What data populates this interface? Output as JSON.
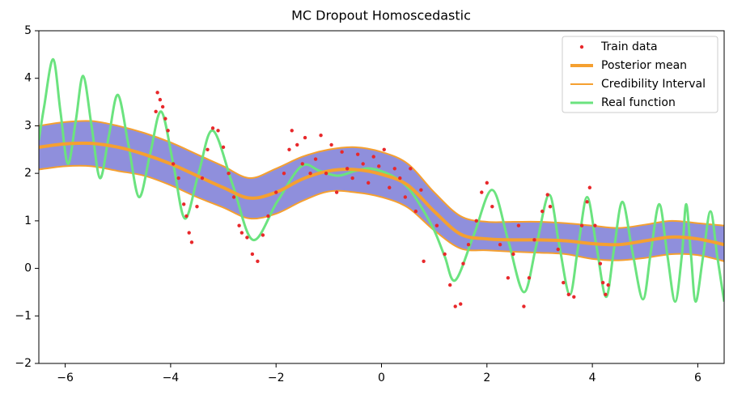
{
  "chart_data": {
    "type": "line",
    "title": "MC Dropout Homoscedastic",
    "xlim": [
      -6.5,
      6.5
    ],
    "ylim": [
      -2,
      5
    ],
    "xticks": [
      {
        "value": -6,
        "label": "−6"
      },
      {
        "value": -4,
        "label": "−4"
      },
      {
        "value": -2,
        "label": "−2"
      },
      0,
      2,
      4,
      6
    ],
    "yticks": [
      {
        "value": -2,
        "label": "−2"
      },
      {
        "value": -1,
        "label": "−1"
      },
      0,
      1,
      2,
      3,
      4,
      5
    ],
    "legend": "upper right",
    "band_color": "#7b7bd6",
    "series": [
      {
        "name": "Train data",
        "kind": "scatter",
        "color": "#e8282b",
        "x": [
          -4.28,
          -4.25,
          -4.2,
          -4.15,
          -4.1,
          -4.05,
          -3.95,
          -3.85,
          -3.75,
          -3.7,
          -3.65,
          -3.6,
          -3.5,
          -3.4,
          -3.3,
          -3.2,
          -3.1,
          -3.0,
          -2.9,
          -2.8,
          -2.7,
          -2.65,
          -2.55,
          -2.45,
          -2.35,
          -2.25,
          -2.15,
          -2.0,
          -1.85,
          -1.75,
          -1.7,
          -1.6,
          -1.5,
          -1.45,
          -1.35,
          -1.25,
          -1.15,
          -1.05,
          -0.95,
          -0.85,
          -0.75,
          -0.65,
          -0.55,
          -0.45,
          -0.35,
          -0.25,
          -0.15,
          -0.05,
          0.05,
          0.15,
          0.25,
          0.35,
          0.45,
          0.55,
          0.65,
          0.75,
          0.8,
          1.05,
          1.2,
          1.3,
          1.4,
          1.5,
          1.55,
          1.65,
          1.8,
          1.9,
          2.0,
          2.1,
          2.25,
          2.4,
          2.5,
          2.6,
          2.7,
          2.8,
          2.9,
          3.05,
          3.15,
          3.2,
          3.35,
          3.45,
          3.55,
          3.65,
          3.8,
          3.9,
          3.95,
          4.05,
          4.15,
          4.2,
          4.25,
          4.3
        ],
        "values": [
          3.3,
          3.7,
          3.55,
          3.4,
          3.15,
          2.9,
          2.2,
          1.9,
          1.35,
          1.1,
          0.75,
          0.55,
          1.3,
          1.9,
          2.5,
          2.95,
          2.9,
          2.55,
          2.0,
          1.5,
          0.9,
          0.75,
          0.65,
          0.3,
          0.15,
          0.7,
          1.1,
          1.6,
          2.0,
          2.5,
          2.9,
          2.6,
          2.2,
          2.75,
          2.0,
          2.3,
          2.8,
          2.0,
          2.6,
          1.6,
          2.45,
          2.1,
          1.9,
          2.4,
          2.2,
          1.8,
          2.35,
          2.15,
          2.5,
          1.7,
          2.1,
          1.9,
          1.5,
          2.1,
          1.2,
          1.65,
          0.15,
          0.9,
          0.3,
          -0.35,
          -0.8,
          -0.75,
          0.1,
          0.5,
          1.0,
          1.6,
          1.8,
          1.3,
          0.5,
          -0.2,
          0.3,
          0.9,
          -0.8,
          -0.2,
          0.6,
          1.2,
          1.55,
          1.3,
          0.4,
          -0.3,
          -0.55,
          -0.6,
          0.9,
          1.4,
          1.7,
          0.9,
          0.1,
          -0.3,
          -0.55,
          -0.35
        ]
      },
      {
        "name": "Posterior mean",
        "kind": "line",
        "color": "#f5a030",
        "x": [
          -6.5,
          -6,
          -5.5,
          -5,
          -4.5,
          -4,
          -3.5,
          -3,
          -2.5,
          -2,
          -1.5,
          -1,
          -0.5,
          0,
          0.5,
          1,
          1.5,
          2,
          2.5,
          3,
          3.5,
          4,
          4.5,
          5,
          5.5,
          6,
          6.5
        ],
        "values": [
          2.55,
          2.62,
          2.63,
          2.55,
          2.4,
          2.2,
          1.95,
          1.7,
          1.48,
          1.6,
          1.88,
          2.05,
          2.08,
          1.98,
          1.75,
          1.2,
          0.72,
          0.62,
          0.6,
          0.6,
          0.58,
          0.52,
          0.5,
          0.58,
          0.66,
          0.62,
          0.5
        ]
      },
      {
        "name": "Credibility Interval",
        "kind": "interval",
        "color": "#f5a030",
        "x": [
          -6.5,
          -6,
          -5.5,
          -5,
          -4.5,
          -4,
          -3.5,
          -3,
          -2.5,
          -2,
          -1.5,
          -1,
          -0.5,
          0,
          0.5,
          1,
          1.5,
          2,
          2.5,
          3,
          3.5,
          4,
          4.5,
          5,
          5.5,
          6,
          6.5
        ],
        "upper": [
          3.0,
          3.08,
          3.1,
          3.0,
          2.85,
          2.65,
          2.4,
          2.15,
          1.9,
          2.1,
          2.35,
          2.5,
          2.55,
          2.45,
          2.2,
          1.6,
          1.1,
          0.98,
          0.98,
          0.98,
          0.95,
          0.9,
          0.85,
          0.92,
          1.0,
          0.95,
          0.9
        ],
        "lower": [
          2.08,
          2.15,
          2.15,
          2.05,
          1.95,
          1.75,
          1.5,
          1.28,
          1.05,
          1.15,
          1.42,
          1.62,
          1.6,
          1.5,
          1.28,
          0.8,
          0.42,
          0.38,
          0.35,
          0.33,
          0.3,
          0.2,
          0.17,
          0.22,
          0.3,
          0.28,
          0.15
        ]
      },
      {
        "name": "Real function",
        "kind": "line",
        "color": "#6be37f",
        "x": [
          -6.5,
          -6.4,
          -6.23,
          -6.09,
          -5.95,
          -5.8,
          -5.66,
          -5.5,
          -5.34,
          -5.17,
          -5.0,
          -4.8,
          -4.6,
          -4.39,
          -4.18,
          -3.95,
          -3.73,
          -3.47,
          -3.2,
          -2.82,
          -2.44,
          -1.98,
          -1.52,
          -1.17,
          -0.83,
          -0.5,
          -0.2,
          0.2,
          0.5,
          0.75,
          1.0,
          1.2,
          1.4,
          1.75,
          2.1,
          2.4,
          2.7,
          2.94,
          3.18,
          3.37,
          3.57,
          3.73,
          3.9,
          4.08,
          4.26,
          4.41,
          4.57,
          4.76,
          4.96,
          5.11,
          5.27,
          5.42,
          5.57,
          5.7,
          5.78,
          5.87,
          5.96,
          6.1,
          6.24,
          6.37,
          6.5
        ],
        "values": [
          2.7,
          3.4,
          4.4,
          3.3,
          2.2,
          3.1,
          4.05,
          3.0,
          1.9,
          2.8,
          3.65,
          2.6,
          1.5,
          2.4,
          3.3,
          2.2,
          1.05,
          2.0,
          2.9,
          1.75,
          0.6,
          1.4,
          2.15,
          2.05,
          1.95,
          2.05,
          2.1,
          1.95,
          1.7,
          1.3,
          0.8,
          0.25,
          -0.25,
          0.7,
          1.65,
          0.6,
          -0.5,
          0.5,
          1.55,
          0.5,
          -0.55,
          0.45,
          1.5,
          0.45,
          -0.6,
          0.4,
          1.4,
          0.35,
          -0.65,
          0.35,
          1.35,
          0.3,
          -0.7,
          0.3,
          1.35,
          0.3,
          -0.7,
          0.25,
          1.2,
          0.25,
          -0.7
        ]
      }
    ]
  }
}
